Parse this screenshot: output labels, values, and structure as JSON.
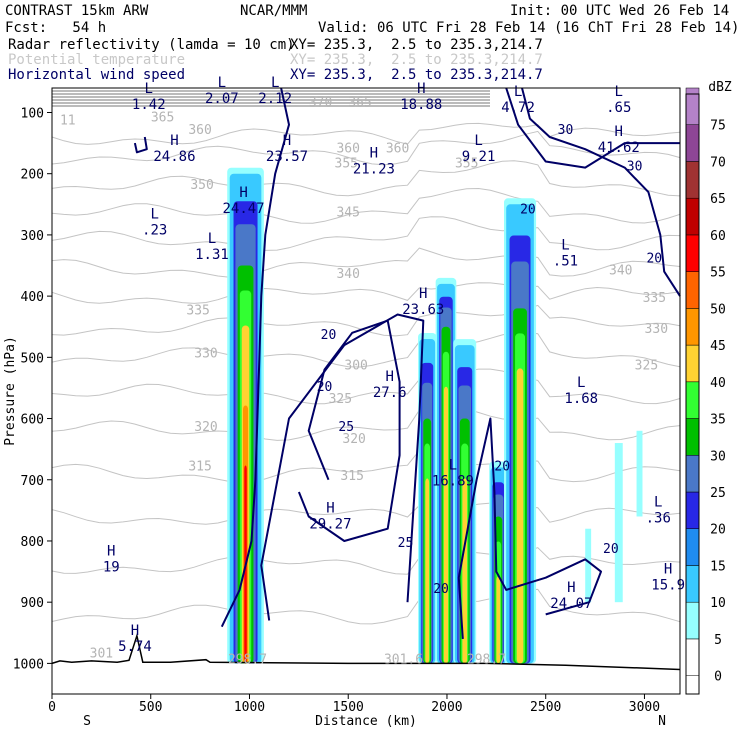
{
  "header": {
    "model": "CONTRAST 15km ARW",
    "org": "NCAR/MMM",
    "init": "Init: 00 UTC Wed 26 Feb 14",
    "fcst": "Fcst:   54 h",
    "valid": "Valid: 06 UTC Fri 28 Feb 14 (16 ChT Fri 28 Feb 14)"
  },
  "fields": [
    {
      "name": "Radar reflectivity (lamda = 10 cm)",
      "xy": "XY= 235.3,  2.5 to 235.3,214.7",
      "color": "#000000"
    },
    {
      "name": "Potential temperature",
      "xy": "XY= 235.3,  2.5 to 235.3,214.7",
      "color": "#c8c8c8"
    },
    {
      "name": "Horizontal wind speed",
      "xy": "XY= 235.3,  2.5 to 235.3,214.7",
      "color": "#000066"
    }
  ],
  "chart_data": {
    "type": "heatmap",
    "xlabel": "Distance (km)",
    "ylabel": "Pressure (hPa)",
    "xlim": [
      0,
      3180
    ],
    "ylim": [
      1050,
      60
    ],
    "x_ticks": [
      0,
      500,
      1000,
      1500,
      2000,
      2500,
      3000
    ],
    "y_ticks": [
      100,
      200,
      300,
      400,
      500,
      600,
      700,
      800,
      900,
      1000
    ],
    "x_end_labels": {
      "left": "S",
      "right": "N"
    },
    "colorbar": {
      "unit": "dBZ",
      "levels": [
        0,
        5,
        10,
        15,
        20,
        25,
        30,
        35,
        40,
        45,
        50,
        55,
        60,
        65,
        70,
        75
      ],
      "colors": [
        "#ffffff",
        "#96ffff",
        "#39c9ff",
        "#1f8cf0",
        "#2828e6",
        "#4a78c8",
        "#00c000",
        "#32ff32",
        "#ffd232",
        "#ff9600",
        "#ff6400",
        "#ff0000",
        "#c00000",
        "#a03232",
        "#8e4696",
        "#b482c8"
      ]
    },
    "convective_towers": [
      {
        "x_left": 900,
        "x_right": 1060,
        "top_hPa": 200,
        "core_top_hPa": 350
      },
      {
        "x_left": 1860,
        "x_right": 1940,
        "top_hPa": 470,
        "core_top_hPa": 600
      },
      {
        "x_left": 1950,
        "x_right": 2040,
        "top_hPa": 380,
        "core_top_hPa": 450
      },
      {
        "x_left": 2040,
        "x_right": 2140,
        "top_hPa": 480,
        "core_top_hPa": 600
      },
      {
        "x_left": 2220,
        "x_right": 2300,
        "top_hPa": 680,
        "core_top_hPa": 760
      },
      {
        "x_left": 2300,
        "x_right": 2440,
        "top_hPa": 250,
        "core_top_hPa": 420
      }
    ],
    "theta_labels": [
      {
        "value": "370",
        "x": 1360,
        "p": 90
      },
      {
        "value": "365",
        "x": 1560,
        "p": 90
      },
      {
        "value": "360",
        "x": 750,
        "p": 135
      },
      {
        "value": "360",
        "x": 1500,
        "p": 165
      },
      {
        "value": "360",
        "x": 1750,
        "p": 165
      },
      {
        "value": "355",
        "x": 1490,
        "p": 190
      },
      {
        "value": "355",
        "x": 2100,
        "p": 190
      },
      {
        "value": "350",
        "x": 760,
        "p": 225
      },
      {
        "value": "345",
        "x": 1500,
        "p": 270
      },
      {
        "value": "340",
        "x": 1500,
        "p": 370
      },
      {
        "value": "340",
        "x": 2880,
        "p": 365
      },
      {
        "value": "335",
        "x": 740,
        "p": 430
      },
      {
        "value": "335",
        "x": 3050,
        "p": 410
      },
      {
        "value": "330",
        "x": 780,
        "p": 500
      },
      {
        "value": "330",
        "x": 3060,
        "p": 460
      },
      {
        "value": "325",
        "x": 1460,
        "p": 575
      },
      {
        "value": "325",
        "x": 3010,
        "p": 520
      },
      {
        "value": "320",
        "x": 780,
        "p": 620
      },
      {
        "value": "320",
        "x": 1530,
        "p": 640
      },
      {
        "value": "315",
        "x": 750,
        "p": 685
      },
      {
        "value": "315",
        "x": 1520,
        "p": 700
      },
      {
        "value": "300",
        "x": 1540,
        "p": 520
      },
      {
        "value": "301",
        "x": 250,
        "p": 990
      },
      {
        "value": "301.6",
        "x": 1780,
        "p": 1000
      },
      {
        "value": "298.7",
        "x": 990,
        "p": 1000
      },
      {
        "value": "298.7",
        "x": 2200,
        "p": 1000
      },
      {
        "value": "11",
        "x": 80,
        "p": 120
      },
      {
        "value": "365",
        "x": 560,
        "p": 115
      }
    ],
    "wind_labels": [
      {
        "value": "20",
        "x": 1400,
        "p": 470
      },
      {
        "value": "20",
        "x": 1380,
        "p": 555
      },
      {
        "value": "25",
        "x": 1490,
        "p": 620
      },
      {
        "value": "25",
        "x": 1790,
        "p": 810
      },
      {
        "value": "20",
        "x": 1970,
        "p": 885
      },
      {
        "value": "20",
        "x": 2280,
        "p": 685
      },
      {
        "value": "20",
        "x": 2410,
        "p": 265
      },
      {
        "value": "30",
        "x": 2600,
        "p": 135
      },
      {
        "value": "30",
        "x": 2950,
        "p": 195
      },
      {
        "value": "20",
        "x": 3050,
        "p": 345
      },
      {
        "value": "20",
        "x": 2830,
        "p": 820
      }
    ],
    "extrema": [
      {
        "type": "L",
        "value": "1.42",
        "x": 490,
        "p": 75
      },
      {
        "type": "L",
        "value": "2.07",
        "x": 860,
        "p": 65
      },
      {
        "type": "L",
        "value": "2.12",
        "x": 1130,
        "p": 65
      },
      {
        "type": "H",
        "value": "18.88",
        "x": 1870,
        "p": 75
      },
      {
        "type": "L",
        "value": "4.72",
        "x": 2360,
        "p": 80
      },
      {
        "type": "L",
        "value": ".65",
        "x": 2870,
        "p": 80
      },
      {
        "type": "H",
        "value": "24.86",
        "x": 620,
        "p": 160
      },
      {
        "type": "H",
        "value": "23.57",
        "x": 1190,
        "p": 160
      },
      {
        "type": "H",
        "value": "21.23",
        "x": 1630,
        "p": 180
      },
      {
        "type": "L",
        "value": "9.21",
        "x": 2160,
        "p": 160
      },
      {
        "type": "H",
        "value": "41.62",
        "x": 2870,
        "p": 145
      },
      {
        "type": "H",
        "value": "24.47",
        "x": 970,
        "p": 245
      },
      {
        "type": "L",
        "value": ".23",
        "x": 520,
        "p": 280
      },
      {
        "type": "L",
        "value": "1.31",
        "x": 810,
        "p": 320
      },
      {
        "type": "L",
        "value": ".51",
        "x": 2600,
        "p": 330
      },
      {
        "type": "H",
        "value": "23.63",
        "x": 1880,
        "p": 410
      },
      {
        "type": "H",
        "value": "27.6",
        "x": 1710,
        "p": 545
      },
      {
        "type": "L",
        "value": "1.68",
        "x": 2680,
        "p": 555
      },
      {
        "type": "L",
        "value": "16.89",
        "x": 2030,
        "p": 690
      },
      {
        "type": "H",
        "value": "29.27",
        "x": 1410,
        "p": 760
      },
      {
        "type": "L",
        "value": ".36",
        "x": 3070,
        "p": 750
      },
      {
        "type": "H",
        "value": "19",
        "x": 300,
        "p": 830
      },
      {
        "type": "H",
        "value": "24.07",
        "x": 2630,
        "p": 890
      },
      {
        "type": "H",
        "value": "15.9",
        "x": 3120,
        "p": 860
      },
      {
        "type": "H",
        "value": "5.74",
        "x": 420,
        "p": 960
      }
    ]
  }
}
